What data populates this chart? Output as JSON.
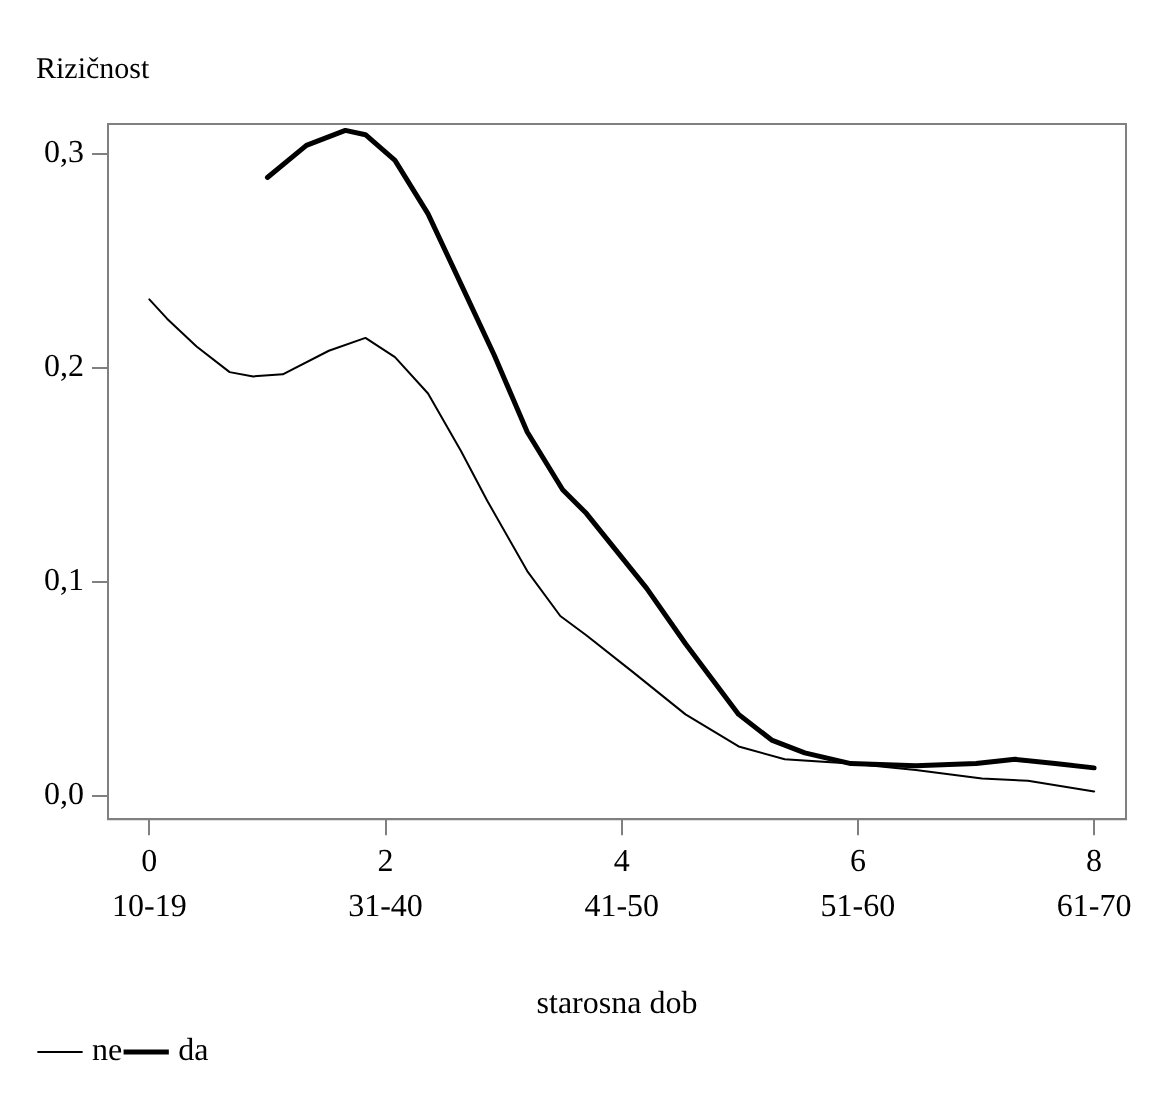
{
  "chart_data": {
    "type": "line",
    "ylabel": "Rizičnost",
    "xlabel": "starosna dob",
    "xlim": [
      -0.35,
      8.27
    ],
    "ylim": [
      -0.011,
      0.314
    ],
    "xticks": [
      0,
      2,
      4,
      6,
      8
    ],
    "annotations": [
      "10-19",
      "31-40",
      "41-50",
      "51-60",
      "61-70"
    ],
    "yticks": [
      {
        "value": 0,
        "label": "0,0"
      },
      {
        "value": 0.1,
        "label": "0,1"
      },
      {
        "value": 0.2,
        "label": "0,2"
      },
      {
        "value": 0.3,
        "label": "0,3"
      }
    ],
    "grid": false,
    "legend": "bottom",
    "marker": "none",
    "line_style": "solid",
    "series": [
      {
        "name": "ne",
        "color": "#000000",
        "x": [
          0,
          0.15,
          0.4,
          0.68,
          0.88,
          1.13,
          1.52,
          1.83,
          2.08,
          2.36,
          2.64,
          2.86,
          3.2,
          3.48,
          3.7,
          4.09,
          4.54,
          4.99,
          5.38,
          5.94,
          6.49,
          7.05,
          7.44,
          8
        ],
        "values": [
          0.232,
          0.223,
          0.21,
          0.198,
          0.196,
          0.197,
          0.208,
          0.214,
          0.205,
          0.188,
          0.161,
          0.138,
          0.105,
          0.084,
          0.075,
          0.058,
          0.038,
          0.023,
          0.017,
          0.015,
          0.012,
          0.008,
          0.007,
          0.002
        ]
      },
      {
        "name": "da",
        "color": "#000000",
        "x": [
          1,
          1.33,
          1.66,
          1.83,
          2.08,
          2.36,
          2.64,
          2.92,
          3.2,
          3.5,
          3.7,
          4.21,
          4.54,
          4.99,
          5.27,
          5.55,
          5.94,
          6.49,
          7,
          7.33,
          7.67,
          8
        ],
        "values": [
          0.289,
          0.304,
          0.311,
          0.309,
          0.297,
          0.272,
          0.239,
          0.206,
          0.17,
          0.143,
          0.132,
          0.097,
          0.071,
          0.038,
          0.026,
          0.02,
          0.015,
          0.014,
          0.015,
          0.017,
          0.015,
          0.013
        ]
      }
    ]
  }
}
